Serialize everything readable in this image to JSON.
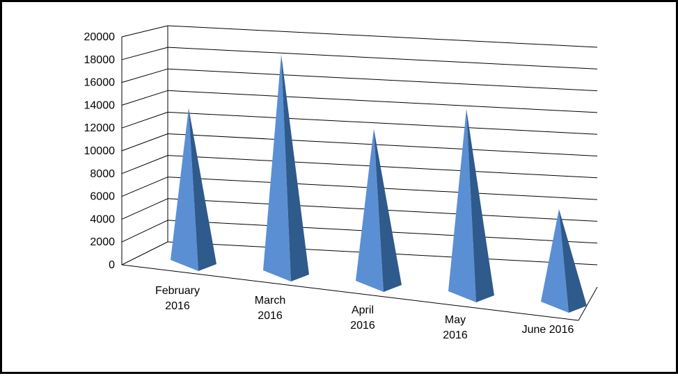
{
  "chart_data": {
    "type": "bar",
    "style": "3d-pyramid",
    "title": "",
    "xlabel": "",
    "ylabel": "",
    "ylim": [
      0,
      20000
    ],
    "yticks": [
      0,
      2000,
      4000,
      6000,
      8000,
      10000,
      12000,
      14000,
      16000,
      18000,
      20000
    ],
    "grid": true,
    "legend": "none",
    "categories": [
      [
        "February",
        "2016"
      ],
      [
        "March",
        "2016"
      ],
      [
        "April",
        "2016"
      ],
      [
        "May",
        "2016"
      ],
      [
        "June 2016"
      ]
    ],
    "values": [
      13800,
      19500,
      13800,
      16500,
      8500
    ],
    "colors": {
      "bar_light": "#5b8fd4",
      "bar_dark": "#2e5a8c",
      "grid": "#000000"
    }
  }
}
